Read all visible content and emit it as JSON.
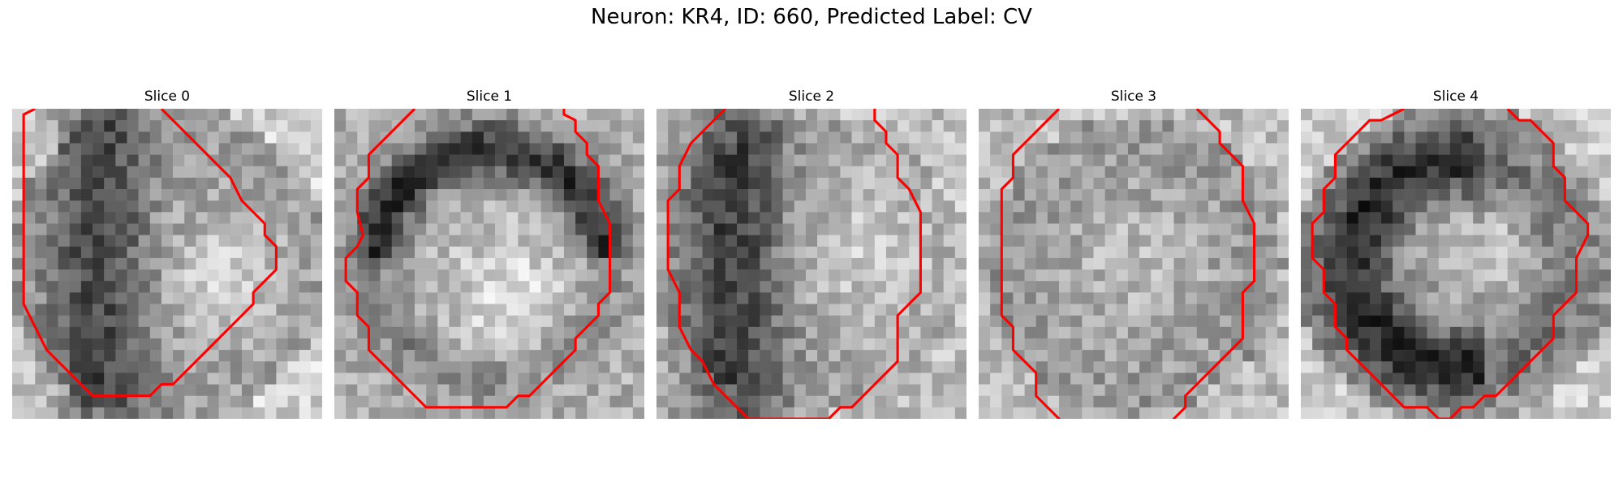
{
  "figure": {
    "title": "Neuron: KR4, ID: 660, Predicted Label: CV"
  },
  "panels": [
    {
      "title": "Slice 0",
      "seed": 11,
      "dark": "ring-left",
      "contour": [
        [
          2,
          0
        ],
        [
          1,
          0.5
        ],
        [
          1,
          6
        ],
        [
          1,
          12
        ],
        [
          1,
          17
        ],
        [
          1.5,
          18
        ],
        [
          2,
          19
        ],
        [
          3,
          21
        ],
        [
          4,
          22
        ],
        [
          5,
          23
        ],
        [
          6,
          24
        ],
        [
          7,
          25
        ],
        [
          8,
          25
        ],
        [
          12,
          25
        ],
        [
          13,
          24
        ],
        [
          14,
          24
        ],
        [
          15,
          23
        ],
        [
          16,
          22
        ],
        [
          17,
          21
        ],
        [
          18,
          20
        ],
        [
          19,
          19
        ],
        [
          20,
          18
        ],
        [
          21,
          17
        ],
        [
          21,
          16
        ],
        [
          22,
          15
        ],
        [
          23,
          14
        ],
        [
          23,
          12
        ],
        [
          22,
          11
        ],
        [
          22,
          10
        ],
        [
          21,
          9
        ],
        [
          20,
          8
        ],
        [
          19,
          6
        ],
        [
          18,
          5
        ],
        [
          17,
          4
        ],
        [
          16,
          3
        ],
        [
          15,
          2
        ],
        [
          14,
          1
        ],
        [
          13,
          0
        ]
      ]
    },
    {
      "title": "Slice 1",
      "seed": 23,
      "dark": "ring-top",
      "contour": [
        [
          7,
          0
        ],
        [
          6,
          1
        ],
        [
          5,
          2
        ],
        [
          4,
          3
        ],
        [
          3,
          4
        ],
        [
          3,
          6
        ],
        [
          2,
          7
        ],
        [
          2,
          9
        ],
        [
          2.5,
          11
        ],
        [
          2,
          12
        ],
        [
          1,
          13
        ],
        [
          1,
          15
        ],
        [
          2,
          16
        ],
        [
          2,
          18
        ],
        [
          3,
          19
        ],
        [
          3,
          21
        ],
        [
          4,
          22
        ],
        [
          5,
          23
        ],
        [
          6,
          24
        ],
        [
          7,
          25
        ],
        [
          8,
          26
        ],
        [
          15,
          26
        ],
        [
          16,
          25
        ],
        [
          17,
          25
        ],
        [
          18,
          24
        ],
        [
          19,
          23
        ],
        [
          20,
          22
        ],
        [
          21,
          21
        ],
        [
          21,
          20
        ],
        [
          22,
          19
        ],
        [
          23,
          18
        ],
        [
          23,
          17
        ],
        [
          24,
          16
        ],
        [
          24,
          10
        ],
        [
          23,
          8
        ],
        [
          23,
          5
        ],
        [
          22,
          4
        ],
        [
          22,
          3
        ],
        [
          21,
          2
        ],
        [
          21,
          1
        ],
        [
          20,
          0.5
        ],
        [
          20,
          0
        ]
      ]
    },
    {
      "title": "Slice 2",
      "seed": 37,
      "dark": "left",
      "contour": [
        [
          6,
          0
        ],
        [
          5,
          1
        ],
        [
          4,
          2
        ],
        [
          3,
          3
        ],
        [
          2,
          5
        ],
        [
          2,
          7
        ],
        [
          1,
          8
        ],
        [
          1,
          10
        ],
        [
          1,
          14
        ],
        [
          2,
          16
        ],
        [
          2,
          19
        ],
        [
          3,
          21
        ],
        [
          4,
          22
        ],
        [
          5,
          24
        ],
        [
          6,
          25
        ],
        [
          7,
          26
        ],
        [
          8,
          27
        ],
        [
          15,
          27
        ],
        [
          16,
          26
        ],
        [
          17,
          26
        ],
        [
          18,
          25
        ],
        [
          19,
          24
        ],
        [
          20,
          23
        ],
        [
          21,
          22
        ],
        [
          21,
          18
        ],
        [
          22,
          17
        ],
        [
          23,
          16
        ],
        [
          23,
          12
        ],
        [
          23,
          9
        ],
        [
          22,
          7
        ],
        [
          21,
          6
        ],
        [
          21,
          4
        ],
        [
          20,
          3
        ],
        [
          20,
          2
        ],
        [
          19,
          1
        ],
        [
          19,
          0
        ]
      ]
    },
    {
      "title": "Slice 3",
      "seed": 51,
      "dark": "none",
      "contour": [
        [
          7,
          0
        ],
        [
          6,
          1
        ],
        [
          5,
          2
        ],
        [
          4,
          3
        ],
        [
          3,
          4
        ],
        [
          3,
          6
        ],
        [
          2,
          7
        ],
        [
          2,
          13
        ],
        [
          2,
          18
        ],
        [
          3,
          19
        ],
        [
          3,
          21
        ],
        [
          4,
          22
        ],
        [
          5,
          23
        ],
        [
          5,
          25
        ],
        [
          6,
          26
        ],
        [
          7,
          27
        ],
        [
          8,
          28
        ],
        [
          16,
          28
        ],
        [
          17,
          27
        ],
        [
          18,
          26
        ],
        [
          18,
          25
        ],
        [
          19,
          24
        ],
        [
          20,
          23
        ],
        [
          21,
          22
        ],
        [
          22,
          21
        ],
        [
          23,
          20
        ],
        [
          23,
          16
        ],
        [
          24,
          15
        ],
        [
          24,
          10
        ],
        [
          23,
          8
        ],
        [
          23,
          5
        ],
        [
          22,
          4
        ],
        [
          21,
          3
        ],
        [
          21,
          2
        ],
        [
          20,
          1
        ],
        [
          19,
          0
        ]
      ]
    },
    {
      "title": "Slice 4",
      "seed": 73,
      "dark": "left-ring",
      "contour": [
        [
          9,
          0
        ],
        [
          8,
          0.5
        ],
        [
          7,
          1
        ],
        [
          6,
          1
        ],
        [
          5,
          2
        ],
        [
          4,
          3
        ],
        [
          3,
          4
        ],
        [
          3,
          6
        ],
        [
          2,
          7
        ],
        [
          2,
          9
        ],
        [
          1,
          10
        ],
        [
          1,
          13
        ],
        [
          2,
          14
        ],
        [
          2,
          16
        ],
        [
          3,
          17
        ],
        [
          3,
          19
        ],
        [
          4,
          20
        ],
        [
          4,
          21
        ],
        [
          5,
          22
        ],
        [
          6,
          23
        ],
        [
          7,
          24
        ],
        [
          8,
          25
        ],
        [
          9,
          26
        ],
        [
          10,
          26
        ],
        [
          11,
          26
        ],
        [
          12,
          27
        ],
        [
          13,
          27
        ],
        [
          14,
          26
        ],
        [
          15,
          26
        ],
        [
          16,
          25
        ],
        [
          17,
          25
        ],
        [
          18,
          24
        ],
        [
          19,
          23
        ],
        [
          20,
          22
        ],
        [
          21,
          21
        ],
        [
          22,
          20
        ],
        [
          22,
          18
        ],
        [
          23,
          17
        ],
        [
          24,
          16
        ],
        [
          24,
          13
        ],
        [
          25,
          11
        ],
        [
          25,
          10
        ],
        [
          24,
          9
        ],
        [
          23,
          8
        ],
        [
          23,
          6
        ],
        [
          22,
          5
        ],
        [
          22,
          3
        ],
        [
          21,
          2
        ],
        [
          20,
          1
        ],
        [
          19,
          1
        ],
        [
          18,
          0
        ]
      ]
    }
  ],
  "colors": {
    "contour": "#ff0000",
    "background": "#ffffff"
  }
}
